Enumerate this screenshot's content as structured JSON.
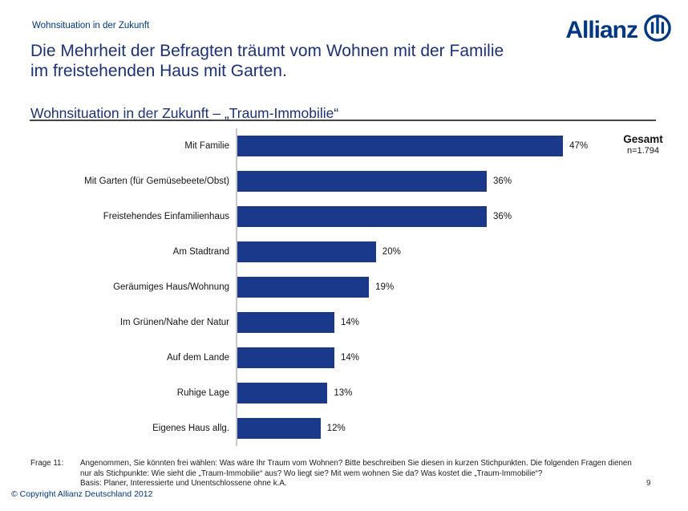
{
  "page": {
    "eyebrow": "Wohnsituation in der Zukunft",
    "title_line1": "Die Mehrheit der Befragten träumt vom Wohnen mit der Familie",
    "title_line2": "im freistehenden Haus mit Garten.",
    "section_title": "Wohnsituation in der Zukunft – „Traum-Immobilie“",
    "copyright": "© Copyright Allianz Deutschland 2012",
    "page_number": "9"
  },
  "logo": {
    "wordmark": "Allianz"
  },
  "legend": {
    "title": "Gesamt",
    "subtitle": "n=1.794"
  },
  "footnote": {
    "label": "Frage 11:",
    "lines": [
      "Angenommen, Sie könnten frei wählen: Was wäre Ihr Traum vom Wohnen? Bitte beschreiben Sie diesen in kurzen Stichpunkten. Die folgenden Fragen dienen",
      "nur als Stichpunkte: Wie sieht die „Traum-Immobilie“ aus? Wo liegt sie? Mit wem wohnen Sie da? Was kostet die „Traum-Immobilie“?",
      "Basis: Planer, Interessierte und Unentschlossene ohne k.A."
    ]
  },
  "colors": {
    "allianz_blue": "#003781",
    "title_navy": "#1D3176",
    "bar_blue": "#1B398B",
    "axis_gray": "#C9C9C9"
  },
  "chart_data": {
    "type": "bar",
    "orientation": "horizontal",
    "title": "Wohnsituation in der Zukunft – „Traum-Immobilie“",
    "categories": [
      "Mit Familie",
      "Mit Garten (für Gemüsebeete/Obst)",
      "Freistehendes Einfamilienhaus",
      "Am Stadtrand",
      "Geräumiges Haus/Wohnung",
      "Im Grünen/Nahe der Natur",
      "Auf dem Lande",
      "Ruhige Lage",
      "Eigenes Haus allg."
    ],
    "values": [
      47,
      36,
      36,
      20,
      19,
      14,
      14,
      13,
      12
    ],
    "value_labels": [
      "47%",
      "36%",
      "36%",
      "20%",
      "19%",
      "14%",
      "14%",
      "13%",
      "12%"
    ],
    "unit": "%",
    "xlabel": "",
    "ylabel": "",
    "xlim": [
      0,
      50
    ],
    "grid": false,
    "bar_color": "#1B398B",
    "legend_entries": [
      "Gesamt n=1.794"
    ],
    "legend_position": "top-right"
  }
}
